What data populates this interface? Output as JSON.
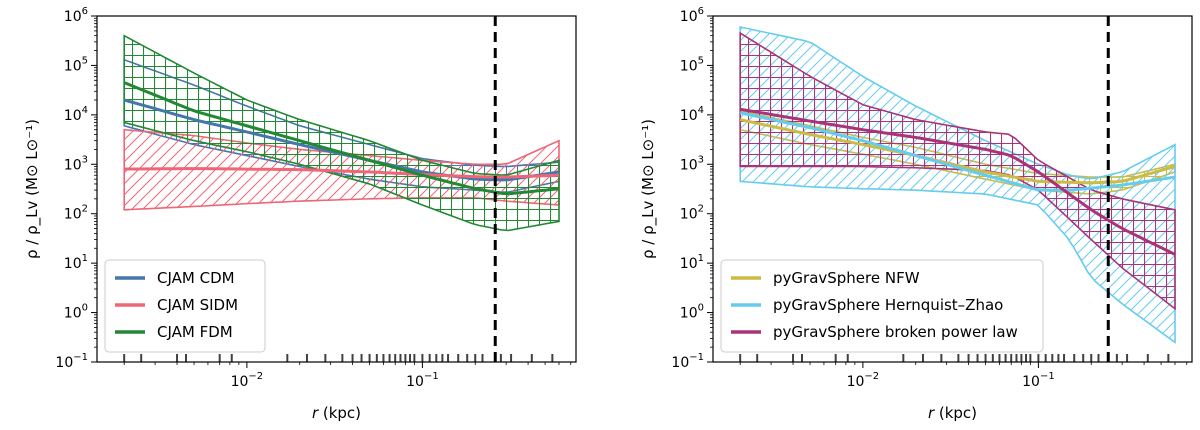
{
  "chart_data": [
    {
      "type": "line",
      "panel": "left",
      "xlabel": "r (kpc)",
      "ylabel": "ρ / ρ_Lv  (M⊙ L⊙⁻¹)",
      "xscale": "log",
      "yscale": "log",
      "xlim": [
        0.0014,
        0.75
      ],
      "ylim": [
        0.1,
        1000000
      ],
      "xticks": [
        {
          "v": 0.01,
          "base": "10",
          "exp": "−2"
        },
        {
          "v": 0.1,
          "base": "10",
          "exp": "−1"
        }
      ],
      "yticks": [
        {
          "v": 0.1,
          "base": "10",
          "exp": "−1"
        },
        {
          "v": 1,
          "base": "10",
          "exp": "0"
        },
        {
          "v": 10,
          "base": "10",
          "exp": "1"
        },
        {
          "v": 100,
          "base": "10",
          "exp": "2"
        },
        {
          "v": 1000,
          "base": "10",
          "exp": "3"
        },
        {
          "v": 10000,
          "base": "10",
          "exp": "4"
        },
        {
          "v": 100000,
          "base": "10",
          "exp": "5"
        },
        {
          "v": 1000000,
          "base": "10",
          "exp": "6"
        }
      ],
      "vline_x": 0.26,
      "legend_position": "lower-left",
      "series": [
        {
          "name": "CJAM CDM",
          "color": "#4477AA",
          "hatch": "grid",
          "x": [
            0.002,
            0.005,
            0.01,
            0.02,
            0.05,
            0.1,
            0.2,
            0.3,
            0.6
          ],
          "median": [
            20000,
            8000,
            4500,
            2500,
            1200,
            700,
            500,
            480,
            700
          ],
          "upper": [
            130000,
            40000,
            15000,
            6000,
            2500,
            1300,
            950,
            900,
            1100
          ],
          "lower": [
            6000,
            2500,
            1500,
            900,
            500,
            350,
            300,
            270,
            450
          ]
        },
        {
          "name": "CJAM SIDM",
          "color": "#EE6677",
          "hatch": "diag",
          "x": [
            0.002,
            0.005,
            0.01,
            0.02,
            0.05,
            0.1,
            0.2,
            0.3,
            0.6
          ],
          "median": [
            800,
            820,
            800,
            780,
            700,
            620,
            560,
            550,
            600
          ],
          "upper": [
            5000,
            3800,
            2700,
            2000,
            1500,
            1200,
            1000,
            1000,
            3000
          ],
          "lower": [
            120,
            140,
            160,
            180,
            200,
            210,
            210,
            180,
            150
          ]
        },
        {
          "name": "CJAM FDM",
          "color": "#228833",
          "hatch": "grid",
          "x": [
            0.002,
            0.005,
            0.01,
            0.02,
            0.05,
            0.1,
            0.2,
            0.3,
            0.6
          ],
          "median": [
            45000,
            12000,
            6000,
            3000,
            1200,
            600,
            320,
            250,
            320
          ],
          "upper": [
            400000,
            70000,
            20000,
            8000,
            3000,
            1200,
            650,
            600,
            1200
          ],
          "lower": [
            7000,
            3000,
            1800,
            1000,
            400,
            150,
            60,
            45,
            70
          ]
        }
      ]
    },
    {
      "type": "line",
      "panel": "right",
      "xlabel": "r (kpc)",
      "ylabel": "ρ / ρ_Lv  (M⊙ L⊙⁻¹)",
      "xscale": "log",
      "yscale": "log",
      "xlim": [
        0.0014,
        0.75
      ],
      "ylim": [
        0.1,
        1000000
      ],
      "xticks": [
        {
          "v": 0.01,
          "base": "10",
          "exp": "−2"
        },
        {
          "v": 0.1,
          "base": "10",
          "exp": "−1"
        }
      ],
      "yticks": [
        {
          "v": 0.1,
          "base": "10",
          "exp": "−1"
        },
        {
          "v": 1,
          "base": "10",
          "exp": "0"
        },
        {
          "v": 10,
          "base": "10",
          "exp": "1"
        },
        {
          "v": 100,
          "base": "10",
          "exp": "2"
        },
        {
          "v": 1000,
          "base": "10",
          "exp": "3"
        },
        {
          "v": 10000,
          "base": "10",
          "exp": "4"
        },
        {
          "v": 100000,
          "base": "10",
          "exp": "5"
        },
        {
          "v": 1000000,
          "base": "10",
          "exp": "6"
        }
      ],
      "vline_x": 0.25,
      "legend_position": "lower-left",
      "series": [
        {
          "name": "pyGravSphere NFW",
          "color": "#CCBB44",
          "hatch": "grid",
          "x": [
            0.002,
            0.005,
            0.01,
            0.02,
            0.05,
            0.1,
            0.2,
            0.3,
            0.6
          ],
          "median": [
            8000,
            4000,
            2500,
            1500,
            700,
            450,
            420,
            450,
            900
          ],
          "upper": [
            12000,
            6000,
            3500,
            2200,
            1000,
            650,
            550,
            550,
            1000
          ],
          "lower": [
            5000,
            2500,
            1600,
            1000,
            500,
            300,
            250,
            300,
            700
          ]
        },
        {
          "name": "pyGravSphere Hernquist–Zhao",
          "color": "#66CCEE",
          "hatch": "diag",
          "x": [
            0.002,
            0.005,
            0.01,
            0.02,
            0.05,
            0.1,
            0.15,
            0.2,
            0.3,
            0.6
          ],
          "median": [
            11000,
            5500,
            3000,
            1500,
            600,
            300,
            300,
            330,
            380,
            550
          ],
          "upper": [
            600000,
            300000,
            60000,
            15000,
            3000,
            1000,
            600,
            500,
            700,
            2500
          ],
          "lower": [
            450,
            350,
            320,
            300,
            250,
            150,
            30,
            5,
            1.5,
            0.25
          ]
        },
        {
          "name": "pyGravSphere broken power law",
          "color": "#AA3377",
          "hatch": "grid",
          "x": [
            0.002,
            0.005,
            0.01,
            0.02,
            0.05,
            0.07,
            0.1,
            0.2,
            0.3,
            0.6
          ],
          "median": [
            13000,
            7500,
            5000,
            3500,
            2000,
            1500,
            700,
            120,
            50,
            15
          ],
          "upper": [
            450000,
            60000,
            16000,
            8000,
            4500,
            4000,
            1200,
            300,
            200,
            120
          ],
          "lower": [
            900,
            900,
            900,
            850,
            750,
            600,
            300,
            30,
            8,
            1.2
          ]
        }
      ],
      "rug_x": [
        0.002,
        0.0025,
        0.004,
        0.0045,
        0.007,
        0.0082,
        0.017,
        0.022,
        0.028,
        0.035,
        0.04,
        0.045,
        0.05,
        0.055,
        0.06,
        0.065,
        0.07,
        0.075,
        0.08,
        0.085,
        0.09,
        0.1,
        0.11,
        0.12,
        0.13,
        0.14,
        0.16,
        0.18,
        0.2,
        0.22,
        0.28,
        0.32,
        0.42,
        0.55
      ]
    }
  ]
}
